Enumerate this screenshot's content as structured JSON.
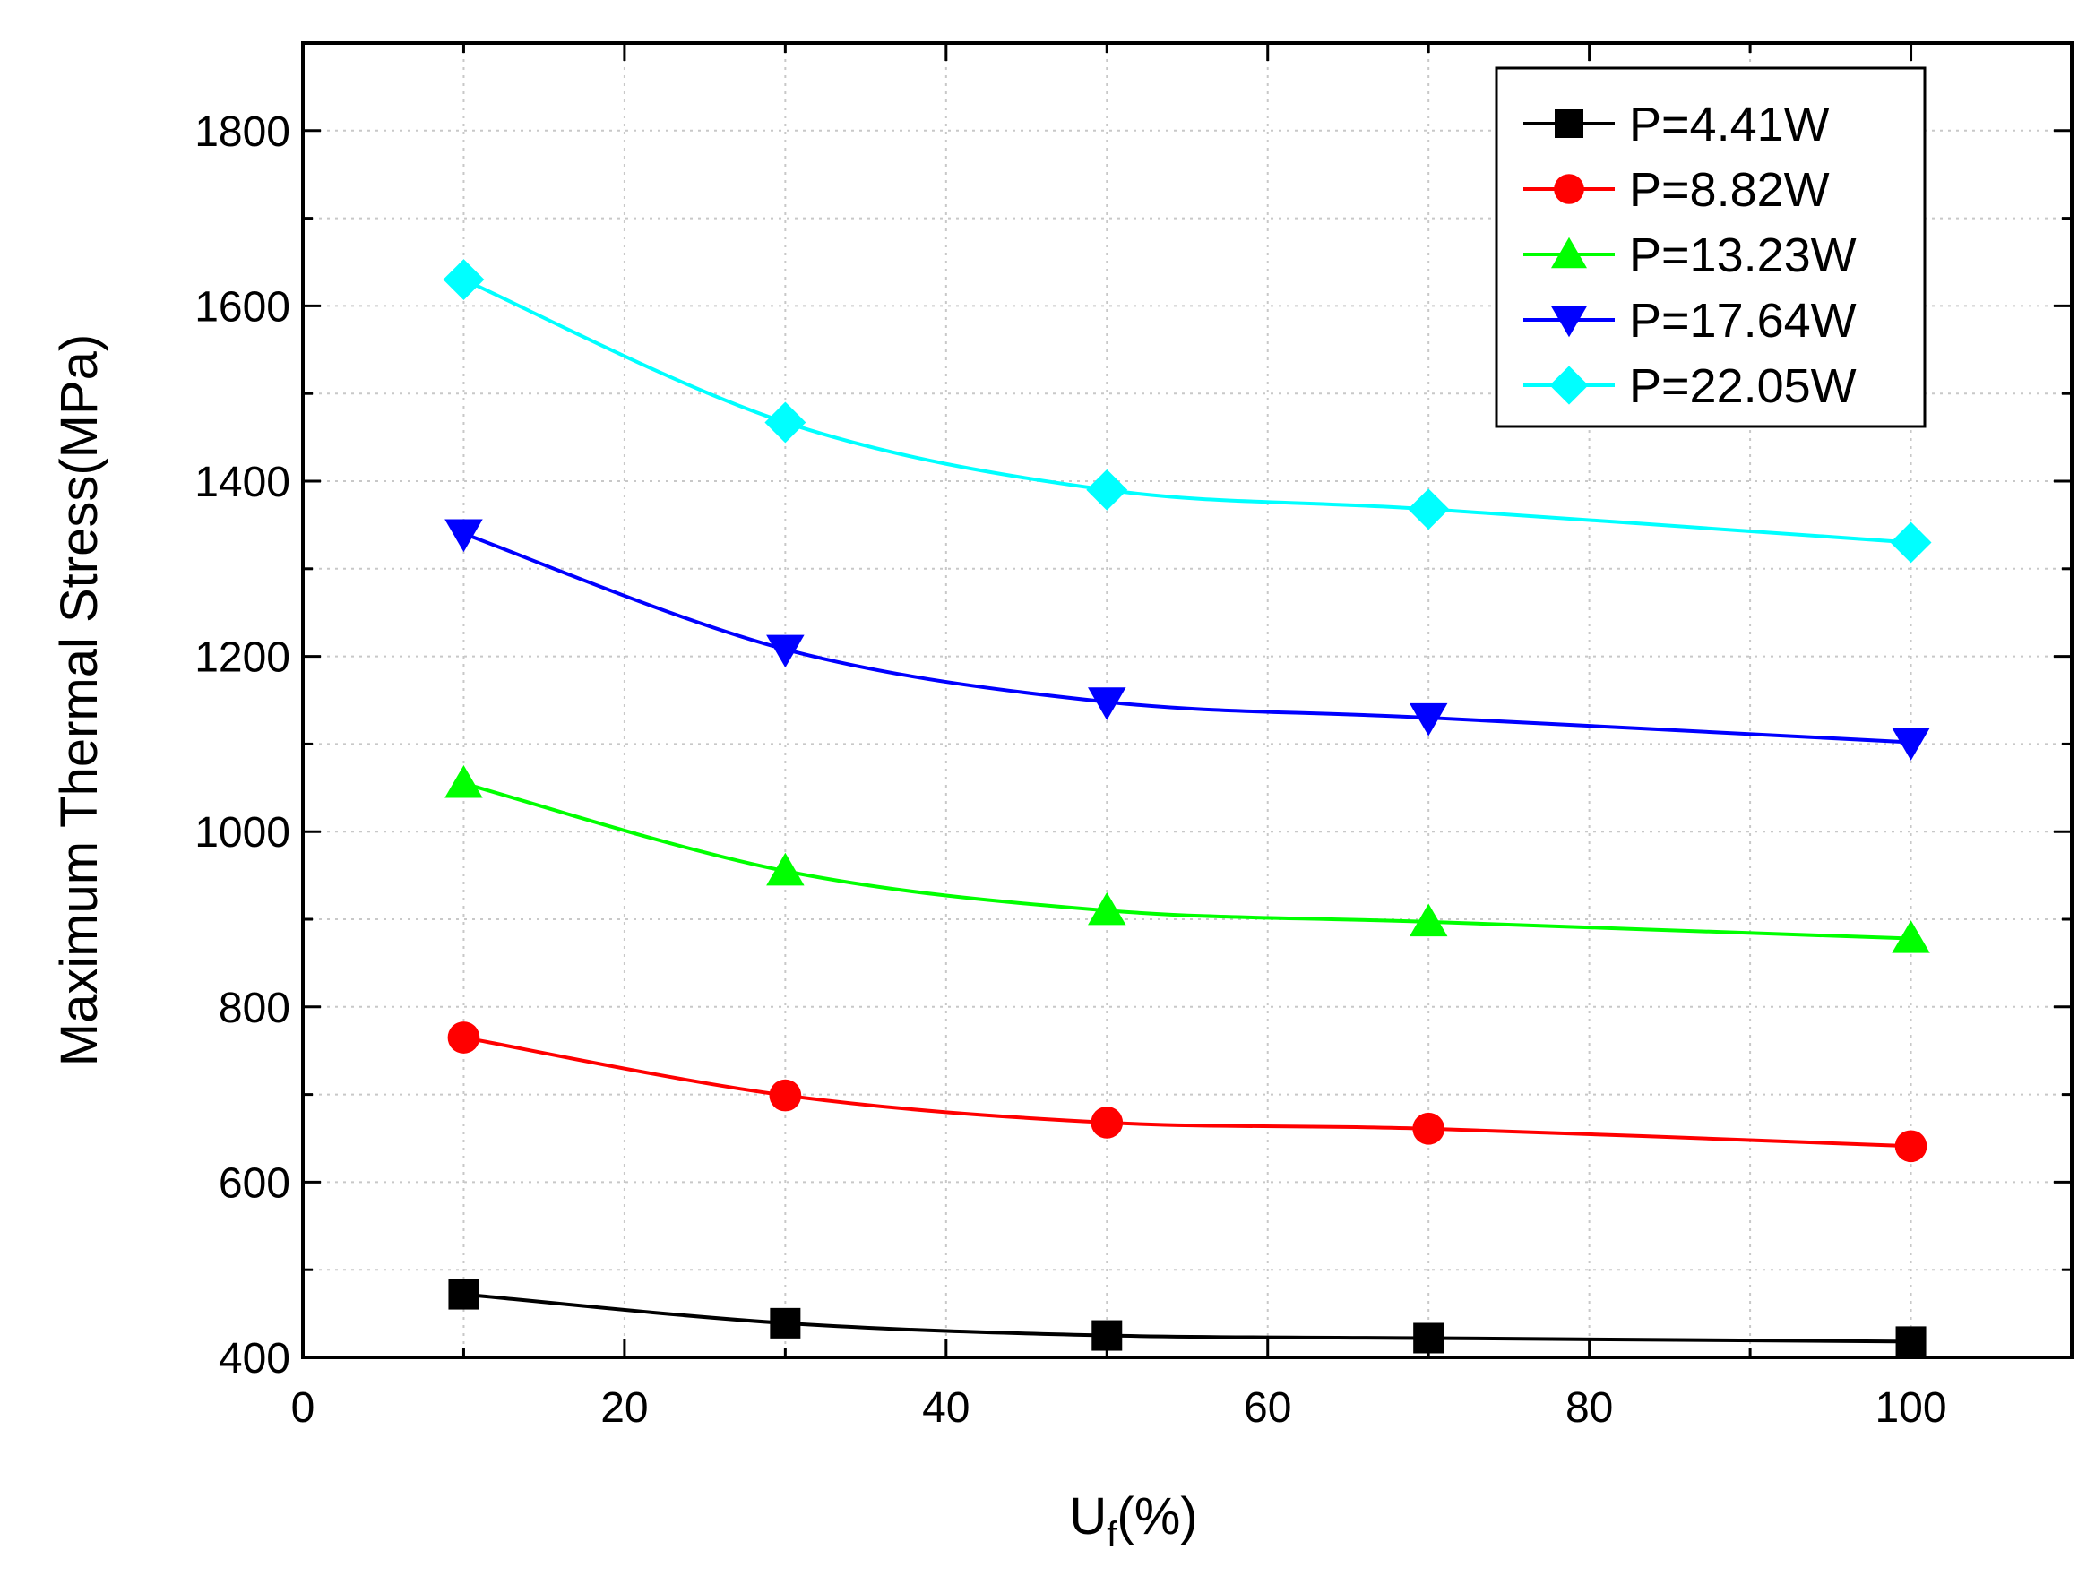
{
  "chart_data": {
    "type": "line",
    "title": "",
    "xlabel_main": "U",
    "xlabel_sub": "f",
    "xlabel_suffix": "(%)",
    "ylabel": "Maximum Thermal Stress(MPa)",
    "xlim": [
      0,
      110
    ],
    "ylim": [
      400,
      1900
    ],
    "x_ticks": [
      0,
      20,
      40,
      60,
      80,
      100
    ],
    "x_tick_labels": [
      "0",
      "20",
      "40",
      "60",
      "80",
      "100"
    ],
    "y_ticks": [
      400,
      600,
      800,
      1000,
      1200,
      1400,
      1600,
      1800
    ],
    "y_tick_labels": [
      "400",
      "600",
      "800",
      "1000",
      "1200",
      "1400",
      "1600",
      "1800"
    ],
    "grid": true,
    "legend_position": "top-right",
    "x": [
      10,
      30,
      50,
      70,
      100
    ],
    "series": [
      {
        "name": "P=4.41W",
        "color": "#000000",
        "marker": "square",
        "values": [
          472,
          439,
          425,
          422,
          418
        ]
      },
      {
        "name": "P=8.82W",
        "color": "#ff0000",
        "marker": "circle",
        "values": [
          765,
          699,
          668,
          661,
          641
        ]
      },
      {
        "name": "P=13.23W",
        "color": "#00ff00",
        "marker": "triangle-up",
        "values": [
          1055,
          955,
          910,
          897,
          878
        ]
      },
      {
        "name": "P=17.64W",
        "color": "#0000ff",
        "marker": "triangle-down",
        "values": [
          1340,
          1208,
          1148,
          1130,
          1102
        ]
      },
      {
        "name": "P=22.05W",
        "color": "#00ffff",
        "marker": "diamond",
        "values": [
          1630,
          1467,
          1390,
          1368,
          1330
        ]
      }
    ]
  }
}
